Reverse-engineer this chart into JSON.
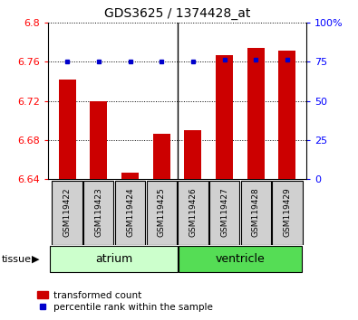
{
  "title": "GDS3625 / 1374428_at",
  "samples": [
    "GSM119422",
    "GSM119423",
    "GSM119424",
    "GSM119425",
    "GSM119426",
    "GSM119427",
    "GSM119428",
    "GSM119429"
  ],
  "red_values": [
    6.742,
    6.72,
    6.647,
    6.686,
    6.69,
    6.767,
    6.774,
    6.771
  ],
  "blue_values": [
    75,
    75,
    75,
    75,
    75,
    76,
    76,
    76
  ],
  "ylim_left": [
    6.64,
    6.8
  ],
  "ylim_right": [
    0,
    100
  ],
  "yticks_left": [
    6.64,
    6.68,
    6.72,
    6.76,
    6.8
  ],
  "yticks_right": [
    0,
    25,
    50,
    75,
    100
  ],
  "atrium_label": "atrium",
  "ventricle_label": "ventricle",
  "tissue_label": "tissue",
  "bar_color": "#cc0000",
  "dot_color": "#0000cc",
  "bar_width": 0.55,
  "atrium_color": "#ccffcc",
  "ventricle_color": "#55dd55",
  "separator": 3.5,
  "legend_red": "transformed count",
  "legend_blue": "percentile rank within the sample",
  "gray_color": "#d0d0d0"
}
